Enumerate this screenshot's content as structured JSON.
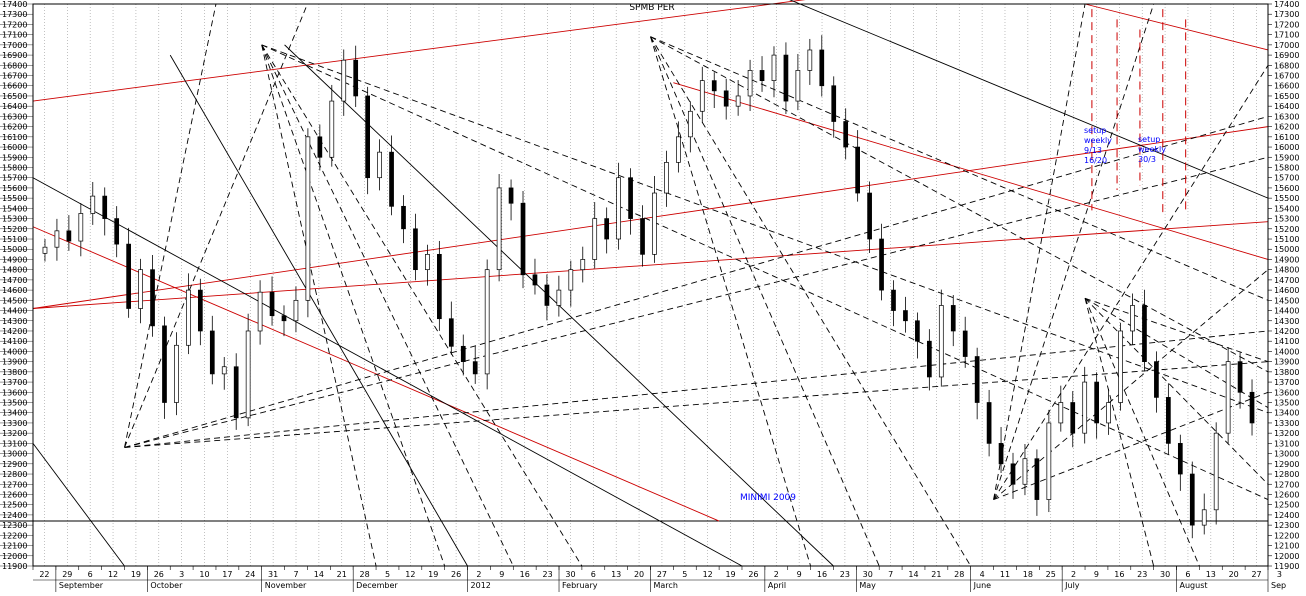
{
  "chart_data": {
    "type": "candlestick",
    "title": "SPMB PER",
    "y_axis": {
      "min": 11900,
      "max": 17400,
      "step": 100,
      "position": "right"
    },
    "x_day_labels": [
      "22",
      "29",
      "6",
      "12",
      "19",
      "26",
      "3",
      "10",
      "17",
      "24",
      "31",
      "7",
      "14",
      "21",
      "28",
      "5",
      "12",
      "19",
      "26",
      "2",
      "9",
      "16",
      "23",
      "30",
      "6",
      "13",
      "20",
      "27",
      "5",
      "12",
      "19",
      "26",
      "2",
      "9",
      "16",
      "23",
      "30",
      "7",
      "14",
      "21",
      "28",
      "4",
      "11",
      "18",
      "25",
      "2",
      "9",
      "16",
      "23",
      "30",
      "6",
      "13",
      "20",
      "27",
      "3"
    ],
    "x_month_labels": [
      "September",
      "October",
      "November",
      "December",
      "2012",
      "February",
      "March",
      "April",
      "May",
      "June",
      "July",
      "August",
      "Sep"
    ],
    "x_month_label_dayindex": [
      1,
      5,
      10,
      14,
      19,
      23,
      27,
      32,
      36,
      41,
      45,
      50,
      54
    ],
    "x_total_days": 54,
    "reference_line": {
      "label": "MINIMI 2009",
      "value": 12340
    },
    "annotations": [
      {
        "text": [
          "setup",
          "weekly",
          "9/13",
          "16/20"
        ]
      },
      {
        "text": [
          "setup",
          "weekly",
          "30/3"
        ]
      }
    ],
    "candles_close": [
      15020,
      15180,
      15080,
      15350,
      15520,
      15300,
      15050,
      14420,
      14800,
      14250,
      13500,
      14060,
      14600,
      14200,
      13780,
      13850,
      13350,
      14200,
      14580,
      14350,
      14300,
      14500,
      16100,
      15900,
      16450,
      16850,
      16500,
      15700,
      15950,
      15420,
      15200,
      14800,
      14950,
      14320,
      14050,
      13900,
      13780,
      14800,
      15600,
      15450,
      14750,
      14650,
      14450,
      14600,
      14800,
      14900,
      15300,
      15100,
      15700,
      15300,
      14950,
      15550,
      15850,
      16100,
      16350,
      16650,
      16550,
      16400,
      16500,
      16750,
      16650,
      16900,
      16450,
      16750,
      16950,
      16600,
      16250,
      16000,
      15550,
      15100,
      14600,
      14400,
      14300,
      14100,
      13750,
      14450,
      14200,
      13950,
      13500,
      13100,
      12900,
      12700,
      12950,
      12550,
      13300,
      13500,
      13200,
      13700,
      13300,
      13500,
      14200,
      14450,
      13900,
      13550,
      13100,
      12800,
      12300,
      12450,
      13200,
      13900,
      13600,
      13300
    ]
  },
  "colors": {
    "bull_fill": "#ffffff",
    "bear_fill": "#000000",
    "red_line": "#cc0000",
    "grid": "#999999",
    "annotation": "#0000ff"
  }
}
